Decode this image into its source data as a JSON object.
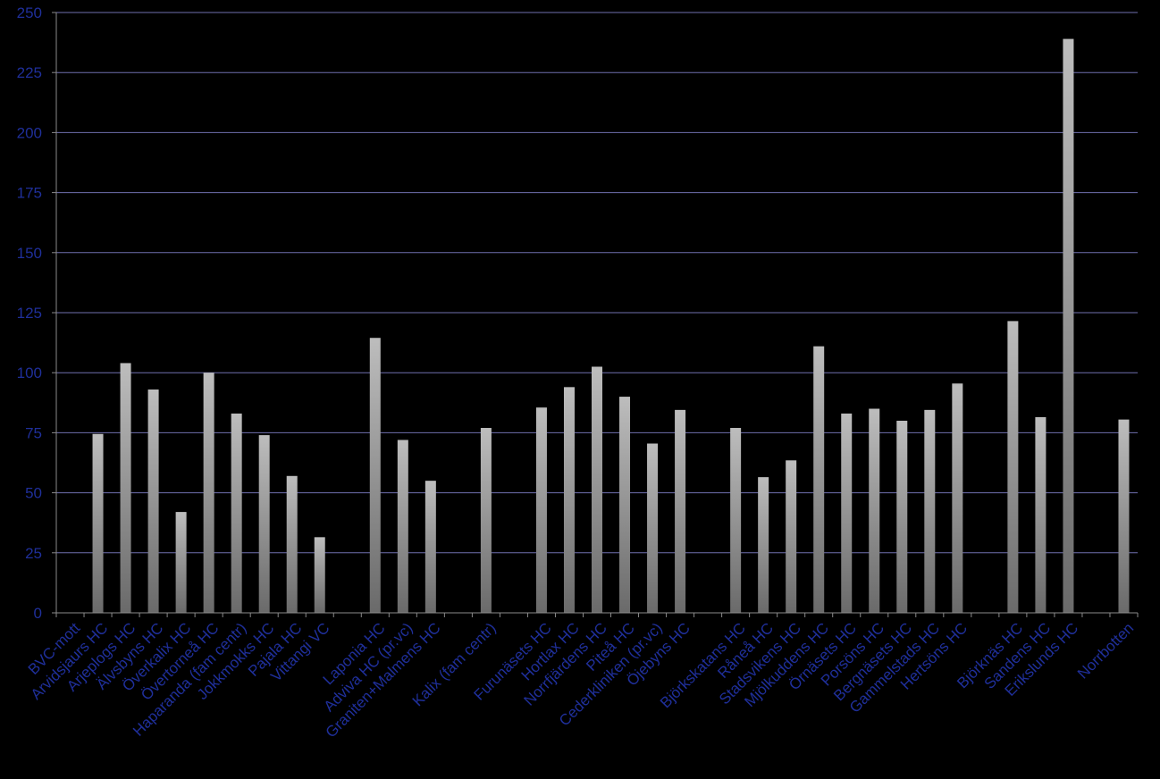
{
  "chart_data": {
    "type": "bar",
    "title": "",
    "xlabel": "",
    "ylabel": "",
    "ylim": [
      0,
      250
    ],
    "yticks": [
      0,
      25,
      50,
      75,
      100,
      125,
      150,
      175,
      200,
      225,
      250
    ],
    "grid": true,
    "legend": "none",
    "colors": {
      "background": "#000000",
      "gridline": "#6f6fae",
      "axis": "#8a8a8a",
      "label": "#1f2f9a",
      "bar_top": "#bdbdbd",
      "bar_bottom": "#6a6a6a"
    },
    "categories": [
      "BVC-mott",
      "Arvidsjaurs HC",
      "Arjeplogs HC",
      "Älvsbyns HC",
      "Överkalix HC",
      "Övertorneå HC",
      "Haparanda (fam centr)",
      "Jokkmokks HC",
      "Pajala HC",
      "Vittangi VC",
      "",
      "Laponia HC",
      "Adviva HC (pr.vc)",
      "Graniten+Malmens HC",
      "",
      "Kalix (fam centr)",
      "",
      "Furunäsets HC",
      "Hortlax HC",
      "Norrfjärdens HC",
      "Piteå HC",
      "Cederkliniken (pr.vc)",
      "Öjebyns HC",
      "",
      "Björkskatans HC",
      "Råneå HC",
      "Stadsvikens HC",
      "Mjölkuddens HC",
      "Örnäsets HC",
      "Porsöns HC",
      "Bergnäsets HC",
      "Gammelstads HC",
      "Hertsöns HC",
      "",
      "Björknäs HC",
      "Sandens HC",
      "Erikslunds HC",
      "",
      "Norrbotten"
    ],
    "values": [
      null,
      74.5,
      104,
      93,
      42,
      100,
      83,
      74,
      57,
      31.5,
      null,
      114.5,
      72,
      55,
      null,
      77,
      null,
      85.5,
      94,
      102.5,
      90,
      70.5,
      84.5,
      null,
      77,
      56.5,
      63.5,
      111,
      83,
      85,
      80,
      84.5,
      95.5,
      null,
      121.5,
      81.5,
      239,
      null,
      80.5
    ]
  }
}
